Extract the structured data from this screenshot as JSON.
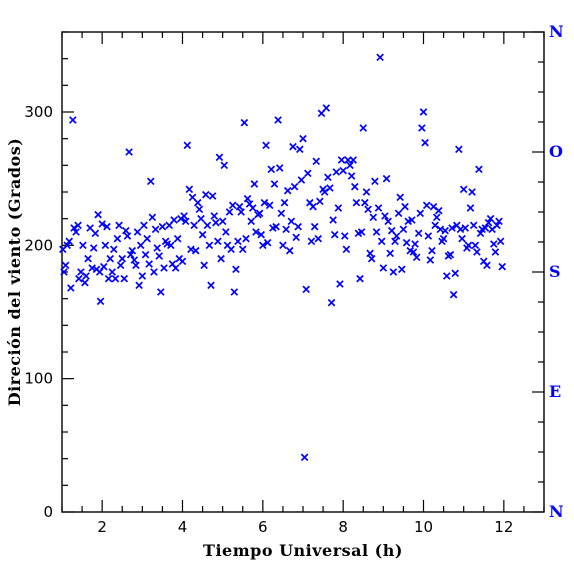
{
  "colors": {
    "marker": "#0000ff",
    "compass": "#0000ff",
    "axes": "#000000"
  },
  "chart_data": {
    "type": "scatter",
    "title": "",
    "xlabel": "Tiempo Universal (h)",
    "ylabel": "Direción del viento (Grados)",
    "xlim": [
      1,
      13
    ],
    "ylim": [
      0,
      360
    ],
    "x_ticks": [
      2,
      4,
      6,
      8,
      10,
      12
    ],
    "x_tick_labels": [
      "2",
      "4",
      "6",
      "8",
      "10",
      "12"
    ],
    "y_ticks": [
      0,
      100,
      200,
      300
    ],
    "y_tick_labels": [
      "0",
      "100",
      "200",
      "300"
    ],
    "right_axis": {
      "labels": [
        "N",
        "E",
        "S",
        "O",
        "N"
      ],
      "values": [
        0,
        90,
        180,
        270,
        360
      ]
    },
    "marker": "x",
    "grid": false,
    "legend": "none",
    "series": [
      {
        "points": [
          [
            1.02,
            197
          ],
          [
            1.05,
            180
          ],
          [
            1.09,
            185
          ],
          [
            1.13,
            200
          ],
          [
            1.18,
            203
          ],
          [
            1.22,
            168
          ],
          [
            1.27,
            294
          ],
          [
            1.3,
            213
          ],
          [
            1.35,
            210
          ],
          [
            1.4,
            215
          ],
          [
            1.42,
            175
          ],
          [
            1.47,
            180
          ],
          [
            1.52,
            200
          ],
          [
            1.57,
            172
          ],
          [
            1.6,
            177
          ],
          [
            1.65,
            190
          ],
          [
            1.7,
            213
          ],
          [
            1.75,
            183
          ],
          [
            1.79,
            198
          ],
          [
            1.83,
            209
          ],
          [
            1.86,
            182
          ],
          [
            1.9,
            223
          ],
          [
            1.94,
            180
          ],
          [
            1.96,
            158
          ],
          [
            2.0,
            216
          ],
          [
            2.04,
            184
          ],
          [
            2.08,
            200
          ],
          [
            2.12,
            214
          ],
          [
            2.16,
            175
          ],
          [
            2.2,
            190
          ],
          [
            2.25,
            180
          ],
          [
            2.29,
            197
          ],
          [
            2.33,
            175
          ],
          [
            2.38,
            205
          ],
          [
            2.42,
            215
          ],
          [
            2.46,
            185
          ],
          [
            2.5,
            190
          ],
          [
            2.55,
            175
          ],
          [
            2.59,
            211
          ],
          [
            2.63,
            207
          ],
          [
            2.67,
            270
          ],
          [
            2.71,
            193
          ],
          [
            2.75,
            196
          ],
          [
            2.8,
            189
          ],
          [
            2.84,
            185
          ],
          [
            2.88,
            210
          ],
          [
            2.92,
            170
          ],
          [
            2.96,
            200
          ],
          [
            3.0,
            177
          ],
          [
            3.04,
            215
          ],
          [
            3.08,
            193
          ],
          [
            3.12,
            205
          ],
          [
            3.17,
            186
          ],
          [
            3.21,
            248
          ],
          [
            3.25,
            221
          ],
          [
            3.29,
            180
          ],
          [
            3.33,
            212
          ],
          [
            3.37,
            198
          ],
          [
            3.42,
            192
          ],
          [
            3.46,
            165
          ],
          [
            3.5,
            214
          ],
          [
            3.54,
            183
          ],
          [
            3.58,
            203
          ],
          [
            3.62,
            201
          ],
          [
            3.67,
            215
          ],
          [
            3.71,
            200
          ],
          [
            3.75,
            186
          ],
          [
            3.79,
            219
          ],
          [
            3.83,
            183
          ],
          [
            3.88,
            205
          ],
          [
            3.92,
            190
          ],
          [
            3.96,
            220
          ],
          [
            4.0,
            188
          ],
          [
            4.04,
            222
          ],
          [
            4.08,
            218
          ],
          [
            4.12,
            275
          ],
          [
            4.17,
            242
          ],
          [
            4.21,
            197
          ],
          [
            4.25,
            236
          ],
          [
            4.29,
            215
          ],
          [
            4.33,
            196
          ],
          [
            4.38,
            232
          ],
          [
            4.42,
            227
          ],
          [
            4.46,
            220
          ],
          [
            4.5,
            208
          ],
          [
            4.54,
            185
          ],
          [
            4.58,
            238
          ],
          [
            4.62,
            215
          ],
          [
            4.67,
            200
          ],
          [
            4.71,
            170
          ],
          [
            4.75,
            237
          ],
          [
            4.79,
            222
          ],
          [
            4.83,
            217
          ],
          [
            4.88,
            203
          ],
          [
            4.92,
            266
          ],
          [
            4.96,
            190
          ],
          [
            5.0,
            218
          ],
          [
            5.04,
            260
          ],
          [
            5.08,
            210
          ],
          [
            5.12,
            200
          ],
          [
            5.17,
            225
          ],
          [
            5.21,
            197
          ],
          [
            5.25,
            230
          ],
          [
            5.29,
            165
          ],
          [
            5.33,
            182
          ],
          [
            5.38,
            203
          ],
          [
            5.42,
            229
          ],
          [
            5.46,
            225
          ],
          [
            5.5,
            197
          ],
          [
            5.54,
            292
          ],
          [
            5.58,
            205
          ],
          [
            5.62,
            235
          ],
          [
            5.67,
            231
          ],
          [
            5.71,
            218
          ],
          [
            5.75,
            228
          ],
          [
            5.79,
            246
          ],
          [
            5.83,
            210
          ],
          [
            5.88,
            223
          ],
          [
            5.92,
            224
          ],
          [
            5.96,
            208
          ],
          [
            6.0,
            200
          ],
          [
            6.04,
            232
          ],
          [
            6.08,
            275
          ],
          [
            6.12,
            202
          ],
          [
            6.17,
            230
          ],
          [
            6.21,
            257
          ],
          [
            6.25,
            213
          ],
          [
            6.29,
            246
          ],
          [
            6.33,
            214
          ],
          [
            6.38,
            294
          ],
          [
            6.42,
            258
          ],
          [
            6.46,
            224
          ],
          [
            6.5,
            200
          ],
          [
            6.54,
            232
          ],
          [
            6.58,
            212
          ],
          [
            6.62,
            241
          ],
          [
            6.67,
            196
          ],
          [
            6.71,
            218
          ],
          [
            6.75,
            274
          ],
          [
            6.79,
            244
          ],
          [
            6.83,
            206
          ],
          [
            6.88,
            214
          ],
          [
            6.92,
            272
          ],
          [
            6.96,
            249
          ],
          [
            7.0,
            280
          ],
          [
            7.04,
            41
          ],
          [
            7.08,
            167
          ],
          [
            7.12,
            254
          ],
          [
            7.17,
            232
          ],
          [
            7.21,
            203
          ],
          [
            7.25,
            229
          ],
          [
            7.29,
            214
          ],
          [
            7.33,
            263
          ],
          [
            7.38,
            205
          ],
          [
            7.42,
            233
          ],
          [
            7.46,
            299
          ],
          [
            7.5,
            242
          ],
          [
            7.54,
            240
          ],
          [
            7.58,
            303
          ],
          [
            7.62,
            251
          ],
          [
            7.67,
            243
          ],
          [
            7.71,
            157
          ],
          [
            7.75,
            219
          ],
          [
            7.79,
            208
          ],
          [
            7.83,
            255
          ],
          [
            7.88,
            228
          ],
          [
            7.92,
            171
          ],
          [
            7.96,
            264
          ],
          [
            8.0,
            256
          ],
          [
            8.04,
            207
          ],
          [
            8.08,
            197
          ],
          [
            8.12,
            264
          ],
          [
            8.17,
            260
          ],
          [
            8.21,
            252
          ],
          [
            8.25,
            264
          ],
          [
            8.29,
            244
          ],
          [
            8.33,
            232
          ],
          [
            8.38,
            209
          ],
          [
            8.42,
            175
          ],
          [
            8.46,
            210
          ],
          [
            8.5,
            288
          ],
          [
            8.54,
            232
          ],
          [
            8.58,
            240
          ],
          [
            8.62,
            227
          ],
          [
            8.67,
            194
          ],
          [
            8.71,
            190
          ],
          [
            8.75,
            221
          ],
          [
            8.79,
            248
          ],
          [
            8.83,
            210
          ],
          [
            8.88,
            228
          ],
          [
            8.92,
            341
          ],
          [
            8.96,
            203
          ],
          [
            9.0,
            183
          ],
          [
            9.04,
            222
          ],
          [
            9.08,
            250
          ],
          [
            9.12,
            218
          ],
          [
            9.17,
            194
          ],
          [
            9.21,
            211
          ],
          [
            9.25,
            180
          ],
          [
            9.29,
            203
          ],
          [
            9.33,
            207
          ],
          [
            9.38,
            224
          ],
          [
            9.42,
            236
          ],
          [
            9.46,
            182
          ],
          [
            9.5,
            212
          ],
          [
            9.54,
            229
          ],
          [
            9.58,
            202
          ],
          [
            9.62,
            218
          ],
          [
            9.67,
            196
          ],
          [
            9.71,
            219
          ],
          [
            9.75,
            195
          ],
          [
            9.79,
            201
          ],
          [
            9.83,
            191
          ],
          [
            9.88,
            209
          ],
          [
            9.92,
            224
          ],
          [
            9.96,
            288
          ],
          [
            10.0,
            300
          ],
          [
            10.04,
            277
          ],
          [
            10.08,
            230
          ],
          [
            10.12,
            207
          ],
          [
            10.17,
            189
          ],
          [
            10.21,
            196
          ],
          [
            10.25,
            229
          ],
          [
            10.29,
            215
          ],
          [
            10.33,
            221
          ],
          [
            10.38,
            226
          ],
          [
            10.42,
            212
          ],
          [
            10.46,
            203
          ],
          [
            10.5,
            205
          ],
          [
            10.54,
            211
          ],
          [
            10.58,
            177
          ],
          [
            10.62,
            192
          ],
          [
            10.67,
            193
          ],
          [
            10.71,
            213
          ],
          [
            10.75,
            163
          ],
          [
            10.79,
            179
          ],
          [
            10.83,
            215
          ],
          [
            10.88,
            272
          ],
          [
            10.92,
            212
          ],
          [
            10.96,
            205
          ],
          [
            11.0,
            242
          ],
          [
            11.04,
            213
          ],
          [
            11.08,
            198
          ],
          [
            11.12,
            200
          ],
          [
            11.17,
            228
          ],
          [
            11.21,
            240
          ],
          [
            11.25,
            215
          ],
          [
            11.29,
            200
          ],
          [
            11.33,
            195
          ],
          [
            11.38,
            257
          ],
          [
            11.42,
            209
          ],
          [
            11.46,
            212
          ],
          [
            11.5,
            188
          ],
          [
            11.54,
            213
          ],
          [
            11.58,
            185
          ],
          [
            11.62,
            217
          ],
          [
            11.67,
            220
          ],
          [
            11.71,
            212
          ],
          [
            11.75,
            201
          ],
          [
            11.79,
            195
          ],
          [
            11.83,
            215
          ],
          [
            11.88,
            218
          ],
          [
            11.92,
            203
          ],
          [
            11.96,
            184
          ]
        ]
      }
    ]
  }
}
